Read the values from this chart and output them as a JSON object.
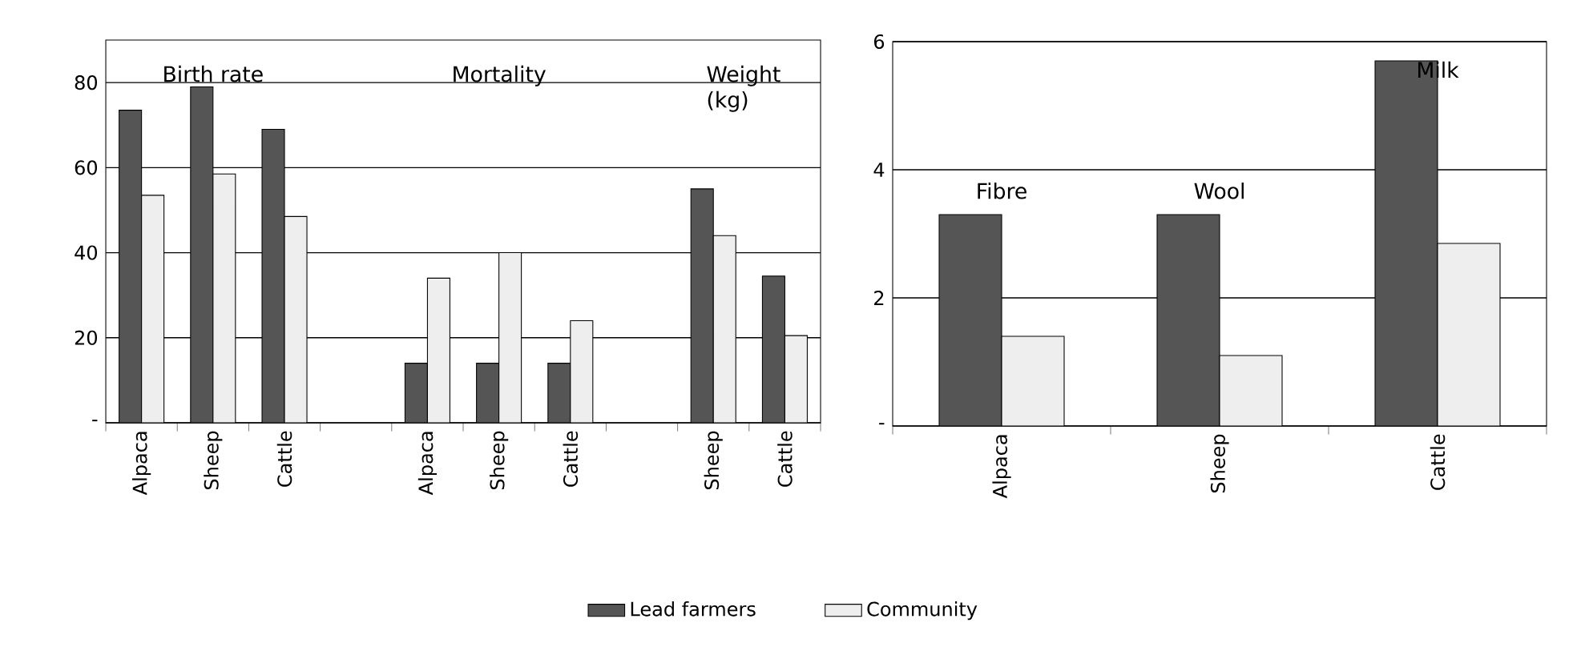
{
  "chart_data": [
    {
      "type": "bar",
      "categories": [
        "Alpaca",
        "Sheep",
        "Cattle",
        null,
        "Alpaca",
        "Sheep",
        "Cattle",
        null,
        "Sheep",
        "Cattle"
      ],
      "series": [
        {
          "name": "Lead farmers",
          "color": "#555555",
          "values": [
            73.5,
            79,
            69,
            null,
            14,
            14,
            14,
            null,
            55,
            34.5
          ]
        },
        {
          "name": "Community",
          "color": "#eeeeee",
          "values": [
            53.5,
            58.5,
            48.5,
            null,
            34,
            40,
            24,
            null,
            44,
            20.5
          ]
        }
      ],
      "ylim": [
        0,
        90
      ],
      "yticks": [
        {
          "value": 0,
          "label": "-"
        },
        20,
        40,
        60,
        80
      ],
      "grid": "y",
      "legend": "bottom",
      "annotations": [
        "Birth rate",
        "Mortality",
        "Weight (kg)"
      ]
    },
    {
      "type": "bar",
      "categories": [
        "Alpaca",
        "Sheep",
        "Cattle"
      ],
      "series": [
        {
          "color": "#555555",
          "values": [
            3.3,
            3.3,
            5.7
          ]
        },
        {
          "color": "#eeeeee",
          "values": [
            1.4,
            1.1,
            2.85
          ]
        }
      ],
      "ylim": [
        0,
        6
      ],
      "yticks": [
        {
          "value": 0,
          "label": "-"
        },
        2,
        4,
        6
      ],
      "grid": "y",
      "annotations": [
        "Fibre",
        "Wool",
        "Milk"
      ]
    }
  ]
}
